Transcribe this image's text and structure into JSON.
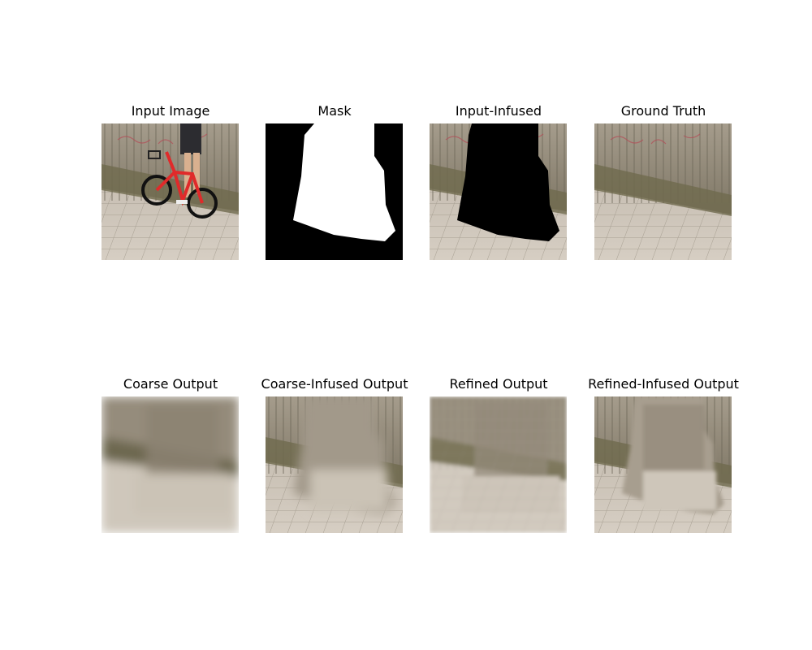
{
  "panels": [
    {
      "title": "Input Image",
      "kind": "input"
    },
    {
      "title": "Mask",
      "kind": "mask"
    },
    {
      "title": "Input-Infused",
      "kind": "infused"
    },
    {
      "title": "Ground Truth",
      "kind": "truth"
    },
    {
      "title": "Coarse Output",
      "kind": "coarse"
    },
    {
      "title": "Coarse-Infused Output",
      "kind": "coarse-infused"
    },
    {
      "title": "Refined Output",
      "kind": "refined"
    },
    {
      "title": "Refined-Infused Output",
      "kind": "refined-infused"
    }
  ],
  "colors": {
    "wall": "#8d8677",
    "grass": "#6f6a4e",
    "pavement": "#c9c0b4",
    "mask_fill": "#ffffff",
    "mask_bg": "#000000",
    "bike_frame": "#e02a2a"
  }
}
